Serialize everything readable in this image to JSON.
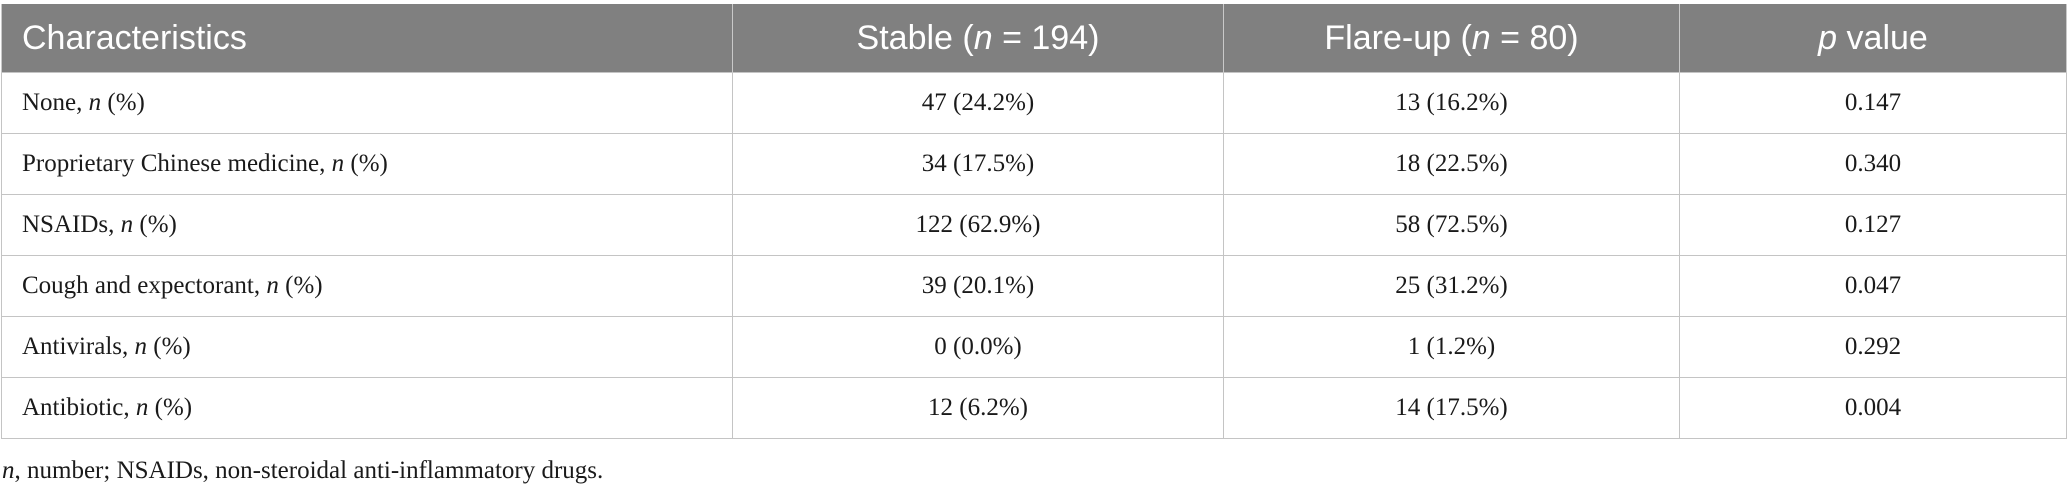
{
  "table": {
    "headers": [
      {
        "pre": "Characteristics",
        "italic": "",
        "post": ""
      },
      {
        "pre": "Stable (",
        "italic": "n",
        "post": " = 194)"
      },
      {
        "pre": "Flare-up (",
        "italic": "n",
        "post": " = 80)"
      },
      {
        "pre": "",
        "italic": "p",
        "post": " value"
      }
    ],
    "rows": [
      {
        "label": "None, ",
        "label_italic": "n",
        "label_suffix": " (%)",
        "stable": "47 (24.2%)",
        "flareup": "13 (16.2%)",
        "p_value": "0.147"
      },
      {
        "label": "Proprietary Chinese medicine, ",
        "label_italic": "n",
        "label_suffix": " (%)",
        "stable": "34 (17.5%)",
        "flareup": "18 (22.5%)",
        "p_value": "0.340"
      },
      {
        "label": "NSAIDs, ",
        "label_italic": "n",
        "label_suffix": " (%)",
        "stable": "122 (62.9%)",
        "flareup": "58 (72.5%)",
        "p_value": "0.127"
      },
      {
        "label": "Cough and expectorant, ",
        "label_italic": "n",
        "label_suffix": " (%)",
        "stable": "39 (20.1%)",
        "flareup": "25 (31.2%)",
        "p_value": "0.047"
      },
      {
        "label": "Antivirals, ",
        "label_italic": "n",
        "label_suffix": " (%)",
        "stable": "0 (0.0%)",
        "flareup": "1 (1.2%)",
        "p_value": "0.292"
      },
      {
        "label": "Antibiotic, ",
        "label_italic": "n",
        "label_suffix": " (%)",
        "stable": "12 (6.2%)",
        "flareup": "14 (17.5%)",
        "p_value": "0.004"
      }
    ]
  },
  "footnote": {
    "italic": "n",
    "text": ", number; NSAIDs, non-steroidal anti-inflammatory drugs."
  },
  "colors": {
    "header_bg": "#808080",
    "header_text": "#ffffff",
    "border": "#c4c4c4"
  }
}
